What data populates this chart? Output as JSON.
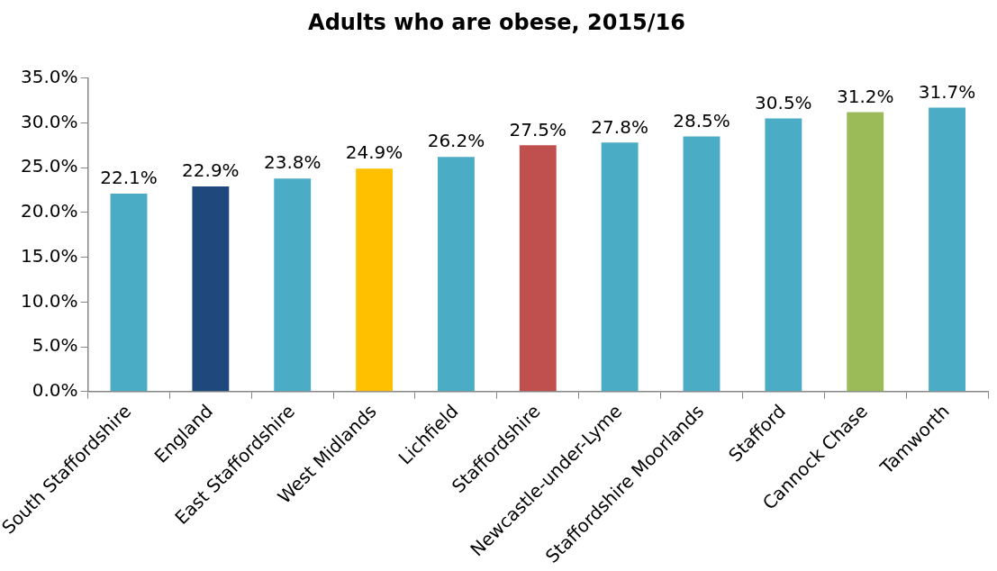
{
  "chart_data": {
    "type": "bar",
    "title": "Adults who are obese, 2015/16",
    "categories": [
      "South Staffordshire",
      "England",
      "East Staffordshire",
      "West Midlands",
      "Lichfield",
      "Staffordshire",
      "Newcastle-under-Lyme",
      "Staffordshire Moorlands",
      "Stafford",
      "Cannock Chase",
      "Tamworth"
    ],
    "values": [
      22.1,
      22.9,
      23.8,
      24.9,
      26.2,
      27.5,
      27.8,
      28.5,
      30.5,
      31.2,
      31.7
    ],
    "colors": [
      "#4bacc6",
      "#1f497d",
      "#4bacc6",
      "#ffc000",
      "#4bacc6",
      "#c0504d",
      "#4bacc6",
      "#4bacc6",
      "#4bacc6",
      "#9bbb59",
      "#4bacc6"
    ],
    "value_labels": [
      "22.1%",
      "22.9%",
      "23.8%",
      "24.9%",
      "26.2%",
      "27.5%",
      "27.8%",
      "28.5%",
      "30.5%",
      "31.2%",
      "31.7%"
    ],
    "ylim": [
      0,
      35
    ],
    "yticks": [
      {
        "value": 0,
        "label": "0.0%"
      },
      {
        "value": 5,
        "label": "5.0%"
      },
      {
        "value": 10,
        "label": "10.0%"
      },
      {
        "value": 15,
        "label": "15.0%"
      },
      {
        "value": 20,
        "label": "20.0%"
      },
      {
        "value": 25,
        "label": "25.0%"
      },
      {
        "value": 30,
        "label": "30.0%"
      },
      {
        "value": 35,
        "label": "35.0%"
      }
    ],
    "grid": false,
    "legend": false
  }
}
